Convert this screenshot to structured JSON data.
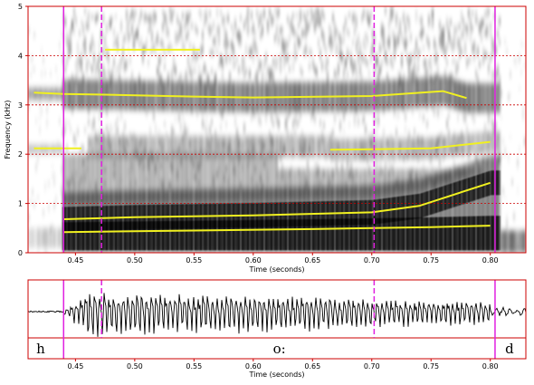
{
  "chart_data": {
    "type": "spectrogram",
    "spectrogram": {
      "xlabel": "Time (seconds)",
      "ylabel": "Frequency (kHz)",
      "xlim": [
        0.41,
        0.83
      ],
      "ylim": [
        0,
        5
      ],
      "x_ticks": [
        "0.45",
        "0.50",
        "0.55",
        "0.60",
        "0.65",
        "0.70",
        "0.75",
        "0.80"
      ],
      "y_ticks": [
        "0",
        "1",
        "2",
        "3",
        "4",
        "5"
      ],
      "grid": "dashed horizontal at each kHz",
      "formant_color": "#f0f020",
      "formant_tracks": [
        {
          "x": [
            0.44,
            0.55,
            0.65,
            0.75,
            0.8
          ],
          "y": [
            0.42,
            0.45,
            0.48,
            0.52,
            0.55
          ]
        },
        {
          "x": [
            0.44,
            0.5,
            0.6,
            0.7,
            0.74,
            0.8
          ],
          "y": [
            0.68,
            0.72,
            0.76,
            0.82,
            0.95,
            1.42
          ]
        },
        {
          "x": [
            0.415,
            0.455
          ],
          "y": [
            2.12,
            2.12
          ]
        },
        {
          "x": [
            0.665,
            0.7,
            0.75,
            0.8
          ],
          "y": [
            2.09,
            2.1,
            2.12,
            2.25
          ]
        },
        {
          "x": [
            0.415,
            0.44,
            0.47,
            0.55,
            0.6,
            0.7,
            0.76,
            0.78
          ],
          "y": [
            3.25,
            3.22,
            3.21,
            3.17,
            3.15,
            3.18,
            3.28,
            3.14
          ]
        },
        {
          "x": [
            0.475,
            0.555
          ],
          "y": [
            4.12,
            4.12
          ]
        }
      ],
      "boundaries": [
        {
          "time": 0.44,
          "style": "solid"
        },
        {
          "time": 0.472,
          "style": "dashed"
        },
        {
          "time": 0.702,
          "style": "dashed"
        },
        {
          "time": 0.804,
          "style": "solid"
        }
      ],
      "boundary_color": "#e020e0"
    },
    "waveform": {
      "xlabel": "Time (seconds)",
      "x_ticks": [
        "0.45",
        "0.50",
        "0.55",
        "0.60",
        "0.65",
        "0.70",
        "0.75",
        "0.80"
      ],
      "voicing_onset": 0.44,
      "voicing_offset": 0.8
    },
    "segments": [
      {
        "label": "h",
        "start": 0.41,
        "end": 0.44
      },
      {
        "label": "o:",
        "start": 0.44,
        "end": 0.804
      },
      {
        "label": "d",
        "start": 0.804,
        "end": 0.83
      }
    ]
  }
}
